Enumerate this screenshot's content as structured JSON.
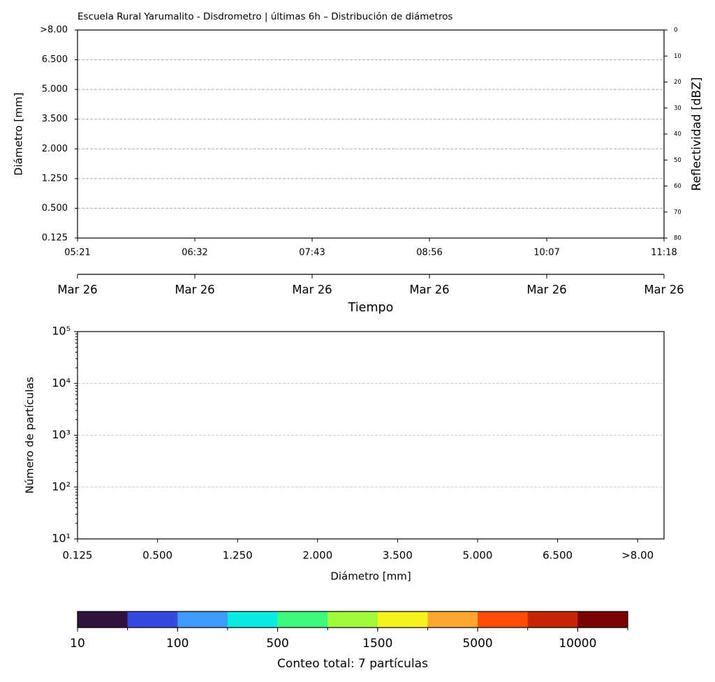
{
  "chart_data": [
    {
      "type": "heatmap",
      "title": "Escuela Rural Yarumalito - Disdrometro | últimas 6h – Distribución de diámetros",
      "y_label": "Diámetro [mm]",
      "y_categories": [
        "0.125",
        "0.500",
        "1.250",
        "2.000",
        "3.500",
        "5.000",
        "6.500",
        ">8.00"
      ],
      "x": [
        "05:21",
        "06:32",
        "07:43",
        "08:56",
        "10:07",
        "11:18"
      ],
      "x_dates": [
        "Mar 26",
        "Mar 26",
        "Mar 26",
        "Mar 26",
        "Mar 26",
        "Mar 26"
      ],
      "x_label": "Tiempo",
      "y2_label": "Reflectividad [dBZ]",
      "y2lim": [
        80,
        0
      ],
      "y2ticks": [
        0,
        10,
        20,
        30,
        40,
        50,
        60,
        70,
        80
      ],
      "grid": true
    },
    {
      "type": "bar",
      "categories": [
        "0.125",
        "0.500",
        "1.250",
        "2.000",
        "3.500",
        "5.000",
        "6.500",
        ">8.00"
      ],
      "x_label": "Diámetro [mm]",
      "y_label": "Número de partículas",
      "log_scale": true,
      "ylim": [
        10,
        100000
      ],
      "yticks": [
        {
          "value": 10,
          "label": "10¹"
        },
        {
          "value": 100,
          "label": "10²"
        },
        {
          "value": 1000,
          "label": "10³"
        },
        {
          "value": 10000,
          "label": "10⁴"
        },
        {
          "value": 100000,
          "label": "10⁵"
        }
      ],
      "grid": true
    },
    {
      "type": "colorbar",
      "colors": [
        "#30123b",
        "#3548df",
        "#3e9bfe",
        "#0aebe1",
        "#3df97b",
        "#a2fc3c",
        "#f7f31e",
        "#fea632",
        "#fe4c05",
        "#c82407",
        "#7a0403"
      ],
      "ticks": [
        10,
        100,
        500,
        1500,
        5000,
        10000
      ],
      "label": "Conteo total: 7 partículas"
    }
  ]
}
